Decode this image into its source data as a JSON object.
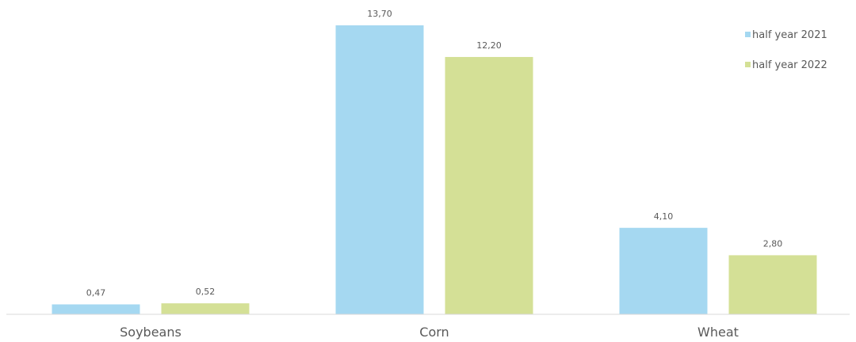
{
  "chart_data": {
    "type": "bar",
    "categories": [
      "Soybeans",
      "Corn",
      "Wheat"
    ],
    "series": [
      {
        "name": "half year 2021",
        "values": [
          0.47,
          13.7,
          4.1
        ],
        "labels": [
          "0,47",
          "13,70",
          "4,10"
        ],
        "color": "#a5d8f1"
      },
      {
        "name": "half year 2022",
        "values": [
          0.52,
          12.2,
          2.8
        ],
        "labels": [
          "0,52",
          "12,20",
          "2,80"
        ],
        "color": "#d4e096"
      }
    ],
    "ylim": [
      0,
      13.7
    ],
    "grid": false,
    "legend_position": "top-right",
    "axis_color": "#d9d9d9",
    "text_color": "#595959"
  }
}
